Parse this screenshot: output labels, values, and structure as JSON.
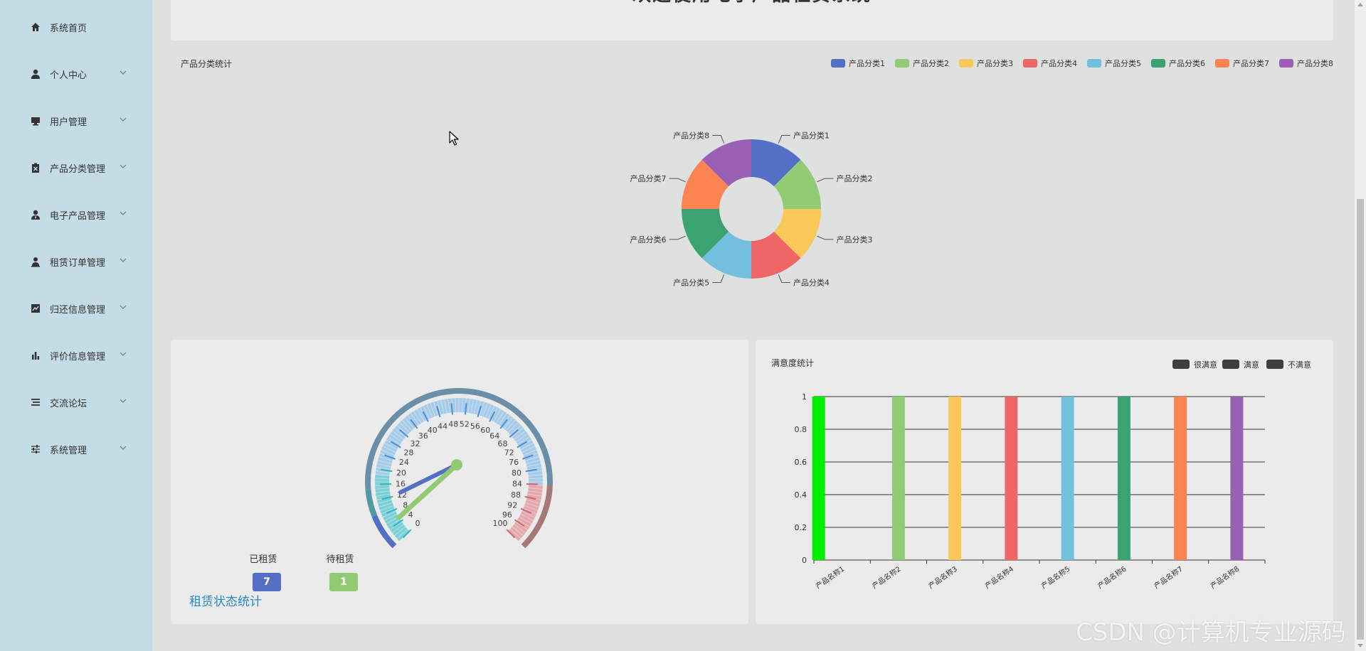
{
  "welcome": {
    "title": "欢迎使用电子产品租赁系统"
  },
  "sidebar": {
    "items": [
      {
        "label": "系统首页",
        "icon": "home-icon",
        "has_arrow": false
      },
      {
        "label": "个人中心",
        "icon": "user-icon",
        "has_arrow": true
      },
      {
        "label": "用户管理",
        "icon": "monitor-icon",
        "has_arrow": true
      },
      {
        "label": "产品分类管理",
        "icon": "clipboard-icon",
        "has_arrow": true
      },
      {
        "label": "电子产品管理",
        "icon": "user-tie-icon",
        "has_arrow": true
      },
      {
        "label": "租赁订单管理",
        "icon": "user-stamp-icon",
        "has_arrow": true
      },
      {
        "label": "归还信息管理",
        "icon": "line-chart-icon",
        "has_arrow": true
      },
      {
        "label": "评价信息管理",
        "icon": "bar-chart-icon",
        "has_arrow": true
      },
      {
        "label": "交流论坛",
        "icon": "list-icon",
        "has_arrow": true
      },
      {
        "label": "系统管理",
        "icon": "sliders-icon",
        "has_arrow": true
      }
    ]
  },
  "colors": {
    "palette": [
      "#5470c6",
      "#91cc75",
      "#fac858",
      "#ee6666",
      "#73c0de",
      "#3ba272",
      "#fc8452",
      "#9a60b4"
    ],
    "sidebar_bg": "#c4dce6",
    "title_blue": "#2a8bc3",
    "first_bar": "#00ee00"
  },
  "pie_chart": {
    "title": "产品分类统计",
    "chart_data": {
      "type": "pie",
      "title": "产品分类统计",
      "style": "donut",
      "categories": [
        "产品分类1",
        "产品分类2",
        "产品分类3",
        "产品分类4",
        "产品分类5",
        "产品分类6",
        "产品分类7",
        "产品分类8"
      ],
      "values": [
        1,
        1,
        1,
        1,
        1,
        1,
        1,
        1
      ],
      "legend_position": "top-right"
    }
  },
  "gauge_chart": {
    "title": "租赁状态统计",
    "chart_data": {
      "type": "gauge",
      "title": "租赁状态统计",
      "min": 0,
      "max": 100,
      "tick_labels": [
        "0",
        "4",
        "8",
        "12",
        "16",
        "20",
        "24",
        "28",
        "32",
        "36",
        "40",
        "44",
        "48",
        "52",
        "56",
        "60",
        "64",
        "68",
        "72",
        "76",
        "80",
        "84",
        "88",
        "92",
        "96",
        "100"
      ],
      "series": [
        {
          "name": "已租赁",
          "value": 7
        },
        {
          "name": "待租赁",
          "value": 1
        }
      ]
    }
  },
  "bar_chart": {
    "title": "满意度统计",
    "chart_data": {
      "type": "bar",
      "title": "满意度统计",
      "categories": [
        "产品名称1",
        "产品名称2",
        "产品名称3",
        "产品名称4",
        "产品名称5",
        "产品名称6",
        "产品名称7",
        "产品名称8"
      ],
      "series": [
        {
          "name": "很满意",
          "values": [
            1,
            0,
            0,
            0,
            0,
            0,
            0,
            0
          ]
        },
        {
          "name": "满意",
          "values": [
            0,
            1,
            1,
            1,
            1,
            1,
            1,
            1
          ]
        },
        {
          "name": "不满意",
          "values": [
            0,
            0,
            0,
            0,
            0,
            0,
            0,
            0
          ]
        }
      ],
      "ylim": [
        0,
        1
      ],
      "yticks": [
        "0",
        "0.2",
        "0.4",
        "0.6",
        "0.8",
        "1"
      ],
      "grid": true,
      "legend_position": "top-right"
    }
  },
  "watermark": "CSDN @计算机专业源码"
}
